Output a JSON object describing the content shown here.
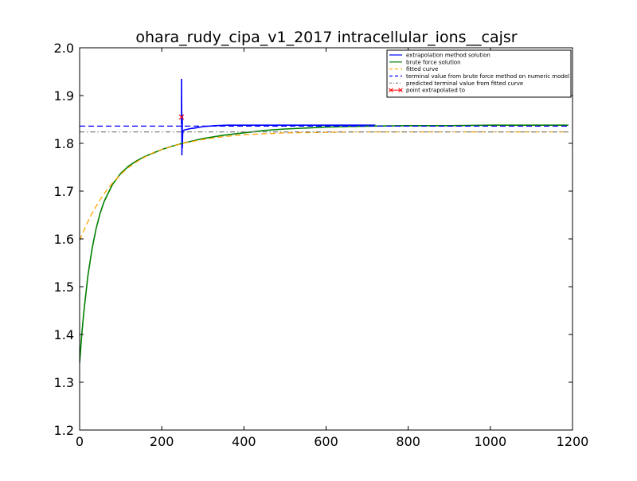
{
  "chart_data": {
    "type": "line",
    "title": "ohara_rudy_cipa_v1_2017 intracellular_ions__cajsr",
    "xlabel": "",
    "ylabel": "",
    "xlim": [
      0,
      1200
    ],
    "ylim": [
      1.2,
      2.0
    ],
    "x_ticks": [
      0,
      200,
      400,
      600,
      800,
      1000,
      1200
    ],
    "x_tick_labels": [
      "0",
      "200",
      "400",
      "600",
      "800",
      "1000",
      "1200"
    ],
    "y_ticks": [
      1.2,
      1.3,
      1.4,
      1.5,
      1.6,
      1.7,
      1.8,
      1.9,
      2.0
    ],
    "y_tick_labels": [
      "1.2",
      "1.3",
      "1.4",
      "1.5",
      "1.6",
      "1.7",
      "1.8",
      "1.9",
      "2.0"
    ],
    "grid": false,
    "legend_position": "top-right",
    "colors": {
      "extrapolation": "#0000ff",
      "brute_force": "#008000",
      "fitted": "#ffa500",
      "terminal_brute": "#0000ff",
      "predicted_terminal": "#7f7f7f",
      "point": "#ff0000"
    },
    "series": [
      {
        "name": "extrapolation method solution",
        "style": "solid",
        "color": "#0000ff",
        "x": [
          248,
          248,
          249,
          249,
          250,
          250,
          251,
          251,
          252,
          255,
          260,
          270,
          280,
          300,
          330,
          360,
          400,
          450,
          500,
          600,
          720
        ],
        "y": [
          1.84,
          1.935,
          1.8,
          1.775,
          1.86,
          1.79,
          1.825,
          1.82,
          1.826,
          1.828,
          1.829,
          1.831,
          1.832,
          1.835,
          1.837,
          1.838,
          1.838,
          1.838,
          1.838,
          1.838,
          1.838
        ]
      },
      {
        "name": "brute force solution",
        "style": "solid",
        "color": "#008000",
        "x": [
          0,
          5,
          10,
          20,
          30,
          40,
          50,
          60,
          80,
          100,
          120,
          140,
          160,
          180,
          200,
          225,
          250,
          275,
          300,
          350,
          400,
          450,
          500,
          550,
          600,
          650,
          700,
          800,
          900,
          1000,
          1100,
          1190
        ],
        "y": [
          1.34,
          1.398,
          1.445,
          1.522,
          1.578,
          1.621,
          1.654,
          1.679,
          1.714,
          1.737,
          1.753,
          1.764,
          1.773,
          1.78,
          1.787,
          1.794,
          1.8,
          1.805,
          1.81,
          1.817,
          1.822,
          1.827,
          1.83,
          1.832,
          1.834,
          1.835,
          1.836,
          1.837,
          1.837,
          1.838,
          1.838,
          1.838
        ]
      },
      {
        "name": "fitted curve",
        "style": "dashed",
        "color": "#ffa500",
        "x": [
          0,
          10,
          20,
          30,
          40,
          50,
          60,
          80,
          100,
          120,
          140,
          160,
          180,
          200,
          250,
          300,
          350,
          400,
          450,
          500,
          600,
          700,
          800,
          1000,
          1190
        ],
        "y": [
          1.597,
          1.617,
          1.636,
          1.653,
          1.668,
          1.682,
          1.695,
          1.717,
          1.735,
          1.75,
          1.762,
          1.772,
          1.781,
          1.787,
          1.8,
          1.808,
          1.814,
          1.818,
          1.82,
          1.822,
          1.823,
          1.824,
          1.824,
          1.824,
          1.824
        ]
      },
      {
        "name": "terminal value from brute force method on numeric model",
        "style": "dashed",
        "color": "#0000ff",
        "x": [
          0,
          1190
        ],
        "y": [
          1.836,
          1.836
        ]
      },
      {
        "name": "predicted terminal value from fitted curve",
        "style": "dashdot",
        "color": "#7f7f7f",
        "x": [
          0,
          1190
        ],
        "y": [
          1.824,
          1.824
        ]
      },
      {
        "name": "point extrapolated to",
        "style": "marker-x",
        "color": "#ff0000",
        "x": [
          248
        ],
        "y": [
          1.855
        ]
      }
    ]
  }
}
